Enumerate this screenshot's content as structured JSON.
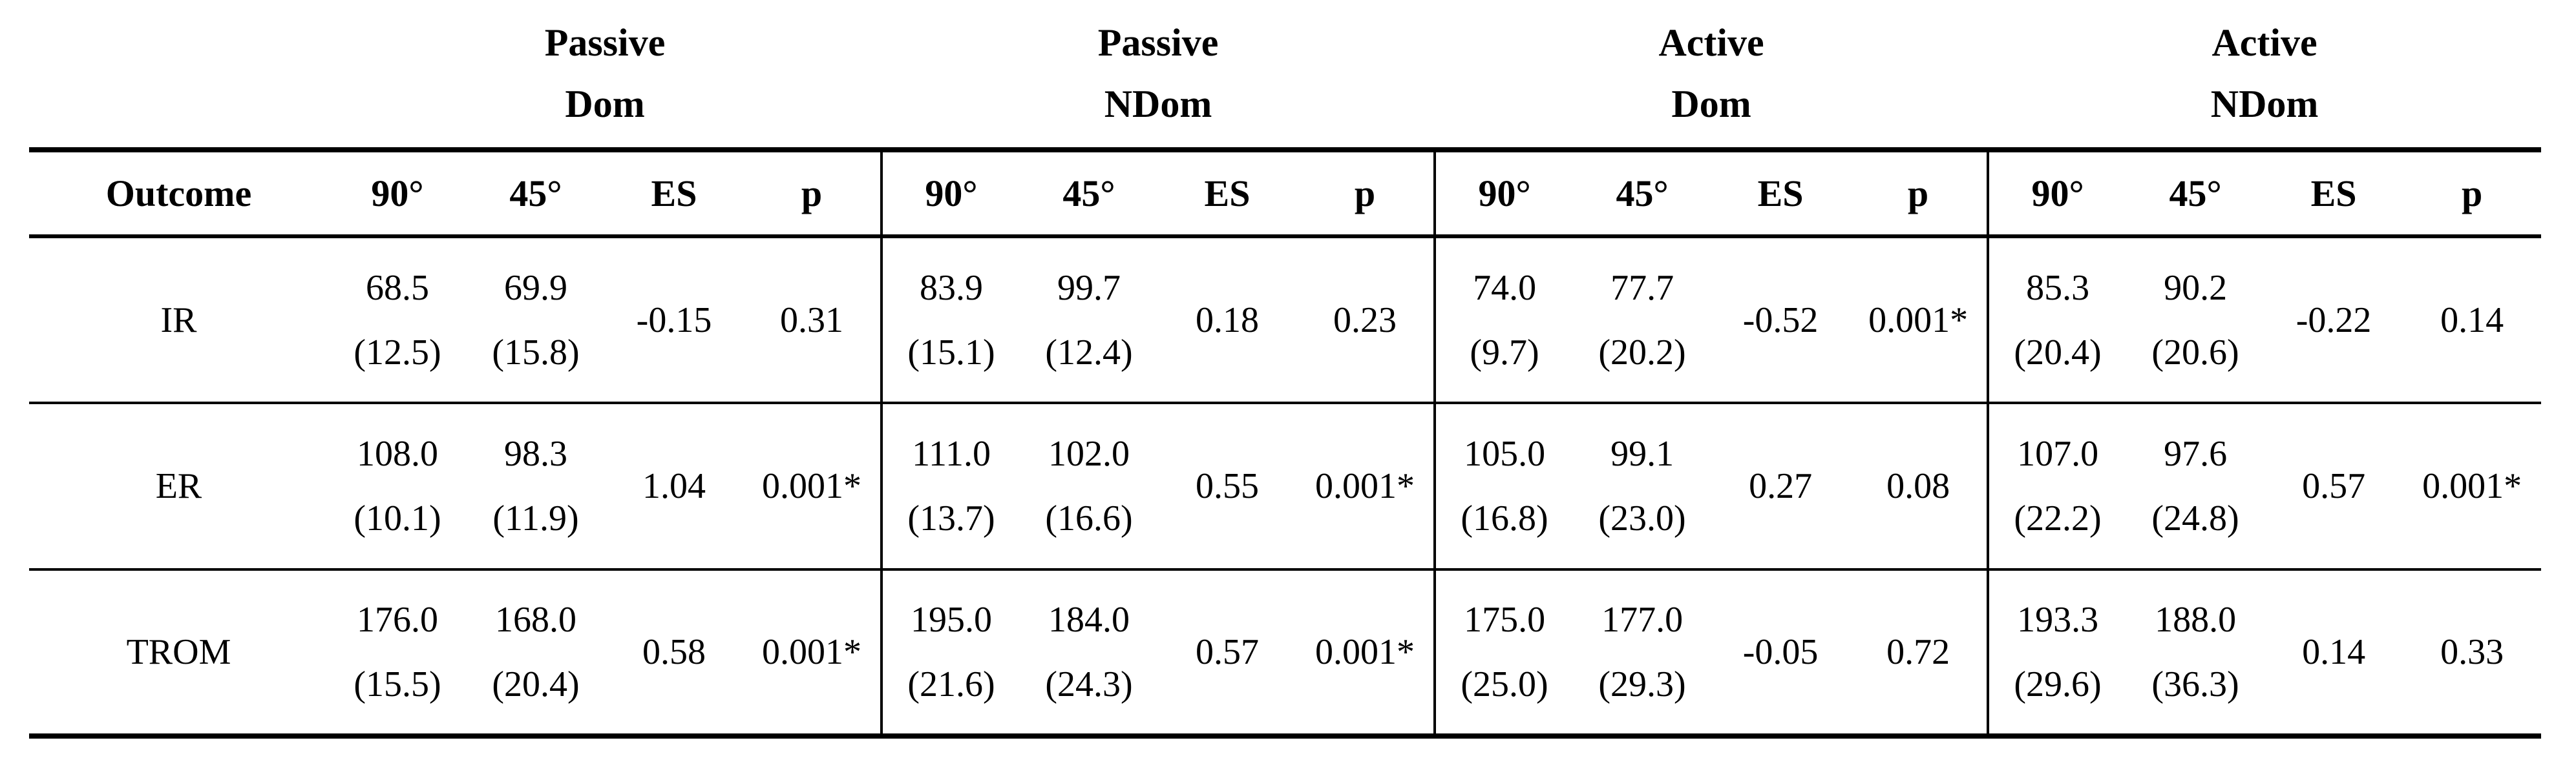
{
  "table": {
    "outcome_header": "Outcome",
    "groups": [
      {
        "line1": "Passive",
        "line2": "Dom"
      },
      {
        "line1": "Passive",
        "line2": "NDom"
      },
      {
        "line1": "Active",
        "line2": "Dom"
      },
      {
        "line1": "Active",
        "line2": "NDom"
      }
    ],
    "sub_headers": [
      "90°",
      "45°",
      "ES",
      "p"
    ],
    "rows": [
      {
        "outcome": "IR",
        "groups": [
          {
            "d90": {
              "mean": "68.5",
              "sd": "(12.5)"
            },
            "d45": {
              "mean": "69.9",
              "sd": "(15.8)"
            },
            "es": "-0.15",
            "p": "0.31"
          },
          {
            "d90": {
              "mean": "83.9",
              "sd": "(15.1)"
            },
            "d45": {
              "mean": "99.7",
              "sd": "(12.4)"
            },
            "es": "0.18",
            "p": "0.23"
          },
          {
            "d90": {
              "mean": "74.0",
              "sd": "(9.7)"
            },
            "d45": {
              "mean": "77.7",
              "sd": "(20.2)"
            },
            "es": "-0.52",
            "p": "0.001*"
          },
          {
            "d90": {
              "mean": "85.3",
              "sd": "(20.4)"
            },
            "d45": {
              "mean": "90.2",
              "sd": "(20.6)"
            },
            "es": "-0.22",
            "p": "0.14"
          }
        ]
      },
      {
        "outcome": "ER",
        "groups": [
          {
            "d90": {
              "mean": "108.0",
              "sd": "(10.1)"
            },
            "d45": {
              "mean": "98.3",
              "sd": "(11.9)"
            },
            "es": "1.04",
            "p": "0.001*"
          },
          {
            "d90": {
              "mean": "111.0",
              "sd": "(13.7)"
            },
            "d45": {
              "mean": "102.0",
              "sd": "(16.6)"
            },
            "es": "0.55",
            "p": "0.001*"
          },
          {
            "d90": {
              "mean": "105.0",
              "sd": "(16.8)"
            },
            "d45": {
              "mean": "99.1",
              "sd": "(23.0)"
            },
            "es": "0.27",
            "p": "0.08"
          },
          {
            "d90": {
              "mean": "107.0",
              "sd": "(22.2)"
            },
            "d45": {
              "mean": "97.6",
              "sd": "(24.8)"
            },
            "es": "0.57",
            "p": "0.001*"
          }
        ]
      },
      {
        "outcome": "TROM",
        "groups": [
          {
            "d90": {
              "mean": "176.0",
              "sd": "(15.5)"
            },
            "d45": {
              "mean": "168.0",
              "sd": "(20.4)"
            },
            "es": "0.58",
            "p": "0.001*"
          },
          {
            "d90": {
              "mean": "195.0",
              "sd": "(21.6)"
            },
            "d45": {
              "mean": "184.0",
              "sd": "(24.3)"
            },
            "es": "0.57",
            "p": "0.001*"
          },
          {
            "d90": {
              "mean": "175.0",
              "sd": "(25.0)"
            },
            "d45": {
              "mean": "177.0",
              "sd": "(29.3)"
            },
            "es": "-0.05",
            "p": "0.72"
          },
          {
            "d90": {
              "mean": "193.3",
              "sd": "(29.6)"
            },
            "d45": {
              "mean": "188.0",
              "sd": "(36.3)"
            },
            "es": "0.14",
            "p": "0.33"
          }
        ]
      }
    ]
  }
}
